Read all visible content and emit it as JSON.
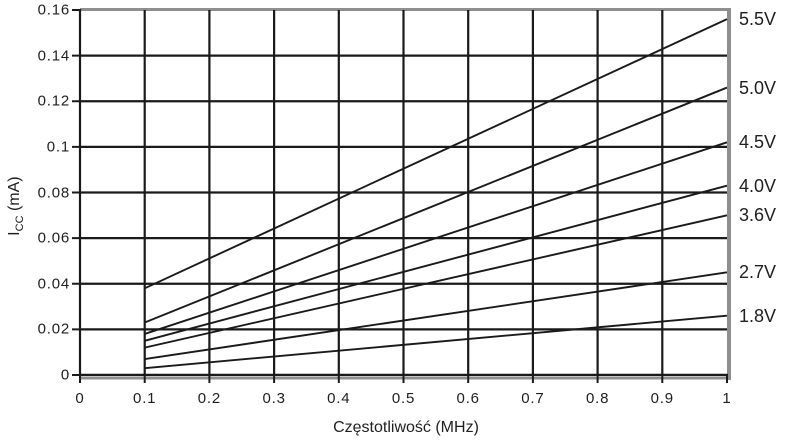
{
  "chart_data": {
    "type": "line",
    "title": "",
    "xlabel": "Częstotliwość (MHz)",
    "ylabel": "ICC (mA)",
    "ylabel_parts": {
      "main": "I",
      "sub": "CC",
      "unit": " (mA)"
    },
    "xlim": [
      0,
      1
    ],
    "ylim": [
      0,
      0.16
    ],
    "grid": true,
    "legend_position": "right-of-plot, one label per line endpoint",
    "x_ticks": [
      0,
      0.1,
      0.2,
      0.3,
      0.4,
      0.5,
      0.6,
      0.7,
      0.8,
      0.9,
      1
    ],
    "x_tick_labels": [
      "0",
      "0.1",
      "0.2",
      "0.3",
      "0.4",
      "0.5",
      "0.6",
      "0.7",
      "0.8",
      "0.9",
      "1"
    ],
    "y_ticks": [
      0,
      0.02,
      0.04,
      0.06,
      0.08,
      0.1,
      0.12,
      0.14,
      0.16
    ],
    "y_tick_labels": [
      "0",
      "0.02",
      "0.04",
      "0.06",
      "0.08",
      "0.1",
      "0.12",
      "0.14",
      "0.16"
    ],
    "x": [
      0.1,
      1.0
    ],
    "series": [
      {
        "name": "5.5V",
        "values": [
          0.038,
          0.156
        ]
      },
      {
        "name": "5.0V",
        "values": [
          0.023,
          0.126
        ]
      },
      {
        "name": "4.5V",
        "values": [
          0.018,
          0.102
        ]
      },
      {
        "name": "4.0V",
        "values": [
          0.015,
          0.083
        ]
      },
      {
        "name": "3.6V",
        "values": [
          0.012,
          0.07
        ]
      },
      {
        "name": "2.7V",
        "values": [
          0.007,
          0.045
        ]
      },
      {
        "name": "1.8V",
        "values": [
          0.003,
          0.026
        ]
      }
    ]
  },
  "colors": {
    "background": "#ffffff",
    "series_line": "#1a1a1a",
    "grid_line": "#1a1a1a",
    "axis_line": "#1a1a1a",
    "border_gray": "#8f8f8f",
    "text": "#1f1f1f"
  }
}
